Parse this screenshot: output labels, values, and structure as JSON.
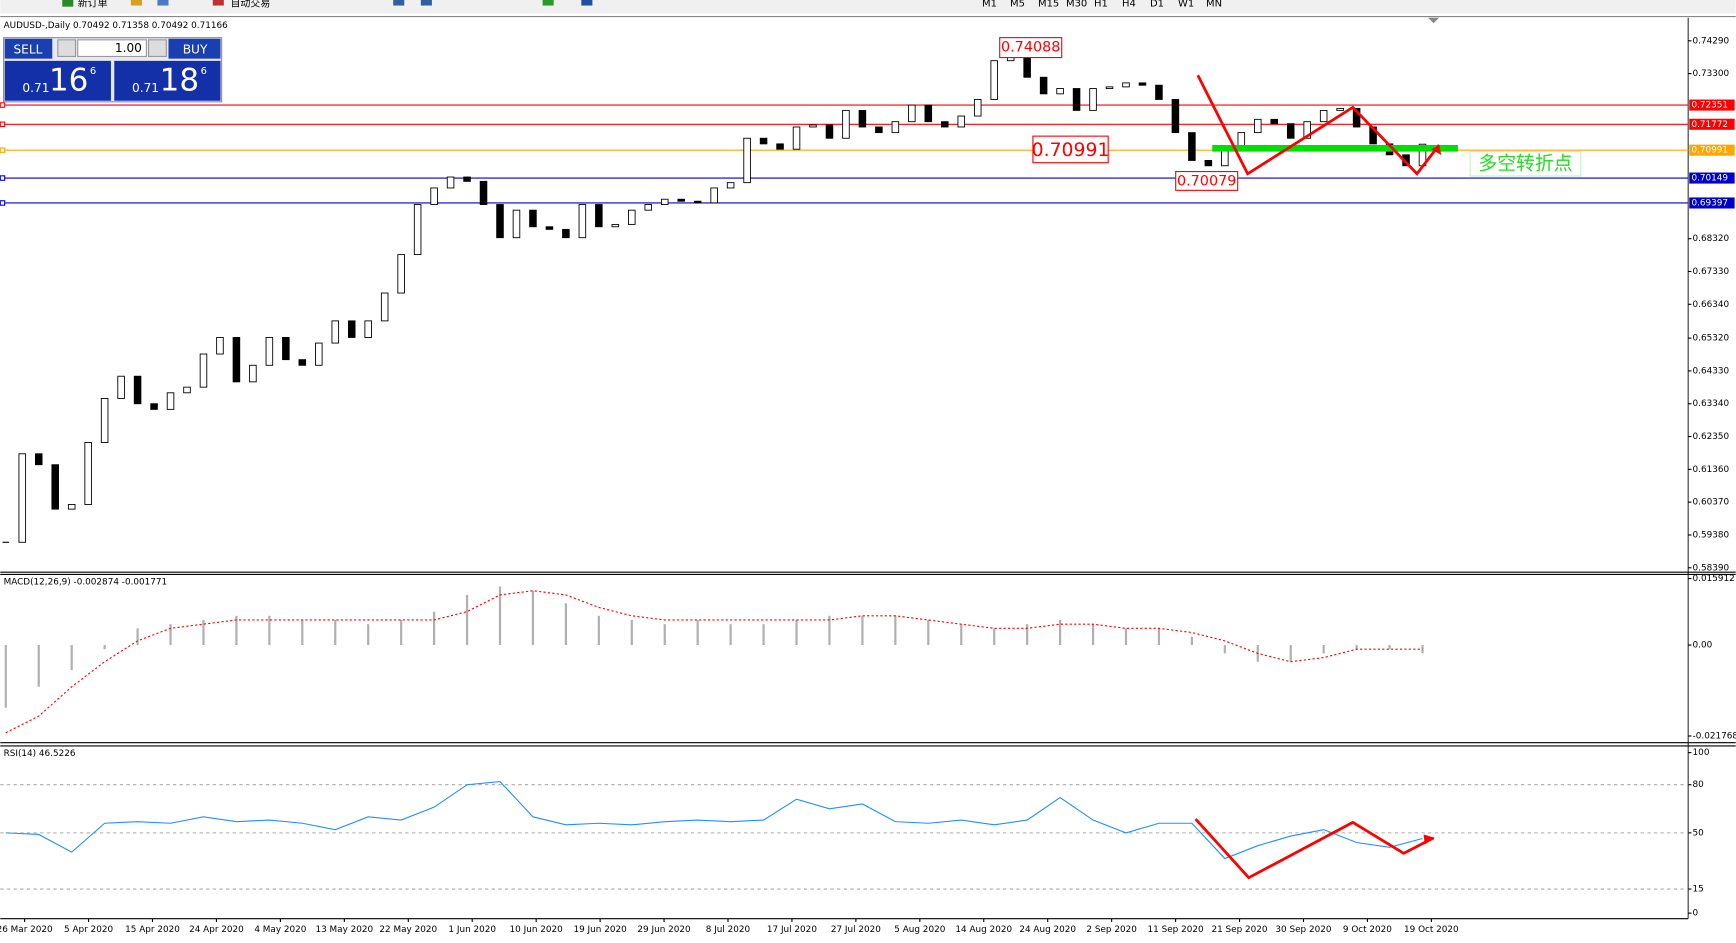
{
  "toolbar": {
    "new_order": "新订单",
    "auto_trading": "自动交易",
    "timeframes": [
      "M1",
      "M5",
      "M15",
      "M30",
      "H1",
      "H4",
      "D1",
      "W1",
      "MN"
    ]
  },
  "trade_panel": {
    "sell": "SELL",
    "buy": "BUY",
    "lots": "1.00",
    "sell_prefix": "0.71",
    "sell_big": "16",
    "sell_frac": "6",
    "buy_prefix": "0.71",
    "buy_big": "18",
    "buy_frac": "6"
  },
  "annotations": [
    "0.74088",
    "0.70991",
    "0.70079",
    "多空转折点"
  ],
  "chart_data": [
    {
      "type": "candlestick",
      "title": "AUDUSD-,Daily 0.70492 0.71358 0.70492 0.71166",
      "closes": [
        0.5916,
        0.6183,
        0.615,
        0.6016,
        0.603,
        0.6217,
        0.635,
        0.6417,
        0.6334,
        0.6317,
        0.6367,
        0.6384,
        0.6484,
        0.6534,
        0.64,
        0.645,
        0.6534,
        0.6467,
        0.645,
        0.6517,
        0.6584,
        0.6534,
        0.6584,
        0.6668,
        0.6784,
        0.6935,
        0.6985,
        0.7018,
        0.7005,
        0.6935,
        0.6835,
        0.6918,
        0.6868,
        0.686,
        0.6835,
        0.6935,
        0.6868,
        0.6875,
        0.6918,
        0.6935,
        0.6951,
        0.6945,
        0.694,
        0.6985,
        0.7001,
        0.7135,
        0.7118,
        0.7102,
        0.7169,
        0.7175,
        0.7135,
        0.7219,
        0.7169,
        0.7152,
        0.7185,
        0.7235,
        0.7185,
        0.7169,
        0.7202,
        0.7252,
        0.7369,
        0.7386,
        0.7319,
        0.7269,
        0.7285,
        0.7219,
        0.7285,
        0.729,
        0.7302,
        0.7295,
        0.7252,
        0.7152,
        0.7068,
        0.7052,
        0.7102,
        0.7152,
        0.7192,
        0.7179,
        0.7135,
        0.7185,
        0.7219,
        0.7225,
        0.7169,
        0.7118,
        0.7085,
        0.7052,
        0.7117
      ],
      "ylim": [
        0.5829,
        0.7492
      ],
      "yticks": [
        {
          "value": 0.7429,
          "label": "0.74290"
        },
        {
          "value": 0.733,
          "label": "0.73300"
        },
        {
          "value": 0.6832,
          "label": "0.68320"
        },
        {
          "value": 0.6733,
          "label": "0.67330"
        },
        {
          "value": 0.6634,
          "label": "0.66340"
        },
        {
          "value": 0.6532,
          "label": "0.65320"
        },
        {
          "value": 0.6433,
          "label": "0.64330"
        },
        {
          "value": 0.6334,
          "label": "0.63340"
        },
        {
          "value": 0.6235,
          "label": "0.62350"
        },
        {
          "value": 0.6136,
          "label": "0.61360"
        },
        {
          "value": 0.6037,
          "label": "0.60370"
        },
        {
          "value": 0.5938,
          "label": "0.59380"
        },
        {
          "value": 0.5839,
          "label": "0.58390"
        }
      ],
      "levels": [
        {
          "value": 0.72351,
          "label": "0.72351",
          "color": "#ff0000"
        },
        {
          "value": 0.71772,
          "label": "0.71772",
          "color": "#ff0000"
        },
        {
          "value": 0.70991,
          "label": "0.70991",
          "color": "#ffa500"
        },
        {
          "value": 0.70149,
          "label": "0.70149",
          "color": "#0000cc"
        },
        {
          "value": 0.69397,
          "label": "0.69397",
          "color": "#0000cc"
        }
      ],
      "date_labels": [
        "26 Mar 2020",
        "5 Apr 2020",
        "15 Apr 2020",
        "24 Apr 2020",
        "4 May 2020",
        "13 May 2020",
        "22 May 2020",
        "1 Jun 2020",
        "10 Jun 2020",
        "19 Jun 2020",
        "29 Jun 2020",
        "8 Jul 2020",
        "17 Jul 2020",
        "27 Jul 2020",
        "5 Aug 2020",
        "14 Aug 2020",
        "24 Aug 2020",
        "2 Sep 2020",
        "11 Sep 2020",
        "21 Sep 2020",
        "30 Sep 2020",
        "9 Oct 2020",
        "19 Oct 2020"
      ]
    },
    {
      "type": "macd",
      "title": "MACD(12,26,9) -0.002874 -0.001771",
      "histogram": {
        "color": "#b0b0b0",
        "values": [
          -0.015,
          -0.01,
          -0.006,
          -0.001,
          0.004,
          0.005,
          0.006,
          0.007,
          0.007,
          0.006,
          0.006,
          0.005,
          0.006,
          0.008,
          0.012,
          0.014,
          0.013,
          0.01,
          0.007,
          0.006,
          0.005,
          0.006,
          0.005,
          0.005,
          0.006,
          0.007,
          0.007,
          0.007,
          0.006,
          0.005,
          0.004,
          0.005,
          0.006,
          0.005,
          0.004,
          0.004,
          0.002,
          -0.002,
          -0.004,
          -0.004,
          -0.002,
          -0.001,
          -0.001,
          -0.002
        ]
      },
      "signal": {
        "color": "#ff0000",
        "values": [
          -0.021,
          -0.017,
          -0.01,
          -0.004,
          0.001,
          0.004,
          0.005,
          0.006,
          0.006,
          0.006,
          0.006,
          0.006,
          0.006,
          0.006,
          0.008,
          0.012,
          0.013,
          0.012,
          0.009,
          0.007,
          0.006,
          0.006,
          0.006,
          0.006,
          0.006,
          0.006,
          0.007,
          0.007,
          0.006,
          0.005,
          0.004,
          0.004,
          0.005,
          0.005,
          0.004,
          0.004,
          0.003,
          0.001,
          -0.002,
          -0.004,
          -0.003,
          -0.001,
          -0.001,
          -0.001
        ]
      },
      "ylim": [
        -0.0231,
        0.0169
      ],
      "yticks": [
        0.015912,
        {
          "value": 0,
          "label": "0.00"
        },
        -0.021768
      ]
    },
    {
      "type": "line",
      "title": "RSI(14) 46.5226",
      "color": "#1e90ff",
      "values": [
        50,
        49,
        38,
        56,
        57,
        56,
        60,
        57,
        58,
        56,
        52,
        60,
        58,
        66,
        80,
        82,
        60,
        55,
        56,
        55,
        57,
        58,
        57,
        58,
        71,
        65,
        68,
        57,
        56,
        58,
        55,
        58,
        72,
        58,
        50,
        56,
        56,
        34,
        42,
        48,
        52,
        44,
        41,
        46.5
      ],
      "ylim": [
        0,
        100
      ],
      "yticks": [
        100,
        80,
        50,
        15,
        0
      ],
      "levels": [
        80,
        50,
        15
      ]
    }
  ]
}
